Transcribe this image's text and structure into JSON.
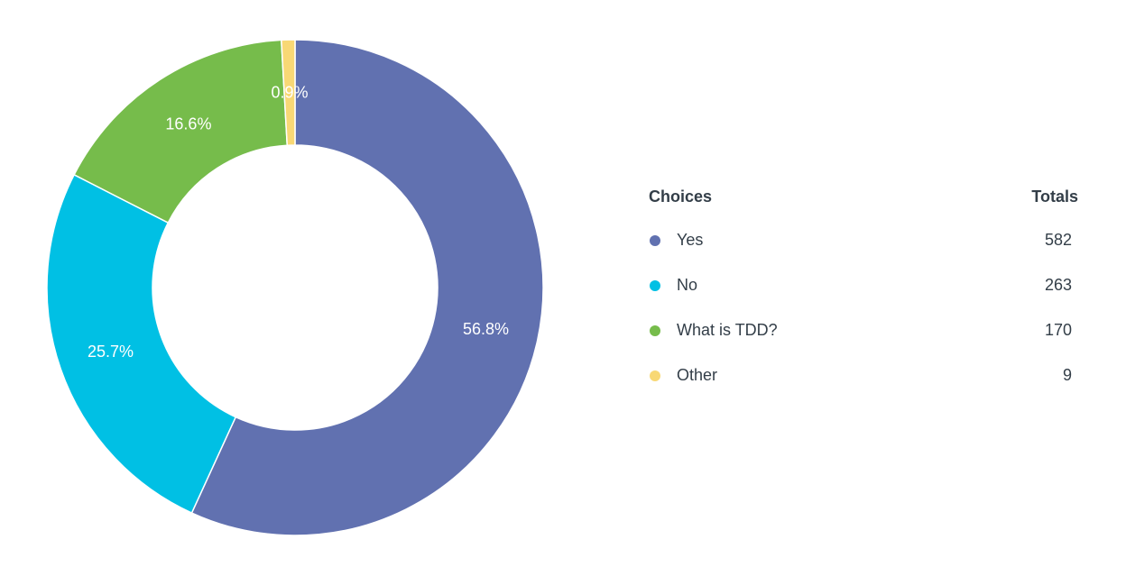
{
  "chart_data": {
    "type": "pie",
    "variant": "donut",
    "categories": [
      "Yes",
      "No",
      "What is TDD?",
      "Other"
    ],
    "values": [
      582,
      263,
      170,
      9
    ],
    "percent_labels": [
      "56.8%",
      "25.7%",
      "16.6%",
      "0.9%"
    ],
    "colors": [
      "#6171b0",
      "#00c0e4",
      "#76bc4b",
      "#f8d875"
    ],
    "legend_placement": "right"
  },
  "legend": {
    "choices_header": "Choices",
    "totals_header": "Totals",
    "rows": [
      {
        "label": "Yes",
        "total": "582",
        "color": "#6171b0"
      },
      {
        "label": "No",
        "total": "263",
        "color": "#00c0e4"
      },
      {
        "label": "What is TDD?",
        "total": "170",
        "color": "#76bc4b"
      },
      {
        "label": "Other",
        "total": "9",
        "color": "#f8d875"
      }
    ]
  }
}
